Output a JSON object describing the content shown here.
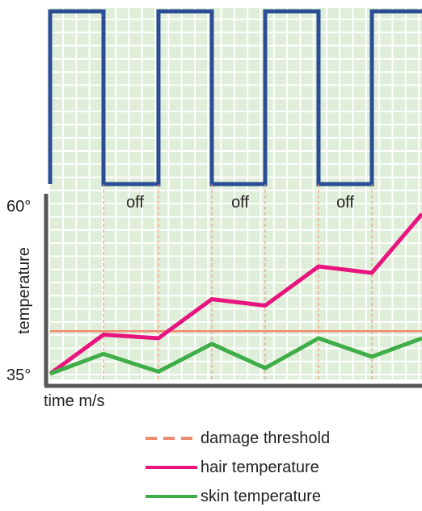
{
  "chart_data": {
    "type": "line",
    "ylabel": "temperature",
    "xlabel": "time m/s",
    "y_tick_labels": [
      "60°",
      "35°"
    ],
    "y_ticks": [
      60,
      35
    ],
    "ylim": [
      35,
      60
    ],
    "grid": true,
    "pulse_signal": {
      "off_labels": [
        "off",
        "off",
        "off"
      ]
    },
    "series": [
      {
        "name": "hair temperature",
        "color": "#e8157f",
        "style": "solid",
        "x": [
          0,
          1,
          2,
          3,
          4,
          5,
          6,
          7
        ],
        "y": [
          35,
          40.5,
          40.0,
          45.5,
          44.6,
          50.1,
          49.2,
          57.5
        ]
      },
      {
        "name": "skin temperature",
        "color": "#3fae49",
        "style": "solid",
        "x": [
          0,
          1,
          2,
          3,
          4,
          5,
          6,
          7
        ],
        "y": [
          35,
          37.8,
          35.3,
          39.2,
          35.8,
          40.0,
          37.4,
          40.0
        ]
      }
    ],
    "threshold": {
      "name": "damage threshold",
      "color": "#f08a6e",
      "style": "dashed",
      "y": 41.0
    },
    "legend": {
      "position": "bottom",
      "entries": [
        "damage threshold",
        "hair temperature",
        "skin temperature"
      ]
    },
    "colors": {
      "grid_bg": "#dfeed8",
      "grid_line": "#ffffff",
      "pulse": "#2b4d96",
      "axis": "#555555",
      "divider": "#f08a6e"
    }
  }
}
